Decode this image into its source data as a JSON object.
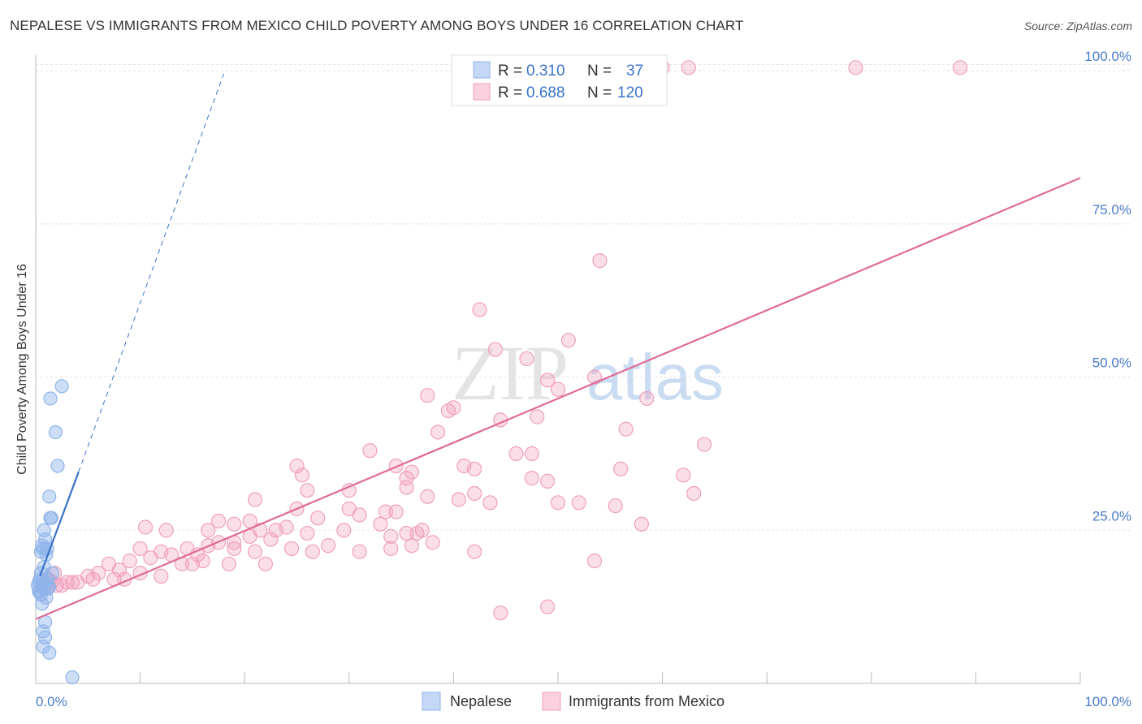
{
  "header": {
    "title": "NEPALESE VS IMMIGRANTS FROM MEXICO CHILD POVERTY AMONG BOYS UNDER 16 CORRELATION CHART",
    "source": "Source: ZipAtlas.com"
  },
  "watermark": {
    "zip": "ZIP",
    "atlas": "atlas"
  },
  "legend": {
    "r_label": "R =",
    "n_label": "N =",
    "rows": [
      {
        "r": "0.310",
        "n": "37"
      },
      {
        "r": "0.688",
        "n": "120"
      }
    ]
  },
  "bottom_legend": {
    "items": [
      "Nepalese",
      "Immigrants from Mexico"
    ]
  },
  "colors": {
    "nepalese": "#8fb4ea",
    "nepalese_line": "#3a72c8",
    "mexico": "#f0a0bd",
    "mexico_line": "#e06a96",
    "tick_text": "#4a7cc9"
  },
  "chart_data": {
    "type": "scatter",
    "title": "NEPALESE VS IMMIGRANTS FROM MEXICO CHILD POVERTY AMONG BOYS UNDER 16 CORRELATION CHART",
    "xlabel": "",
    "ylabel": "Child Poverty Among Boys Under 16",
    "xlim": [
      0,
      100
    ],
    "ylim": [
      0,
      102
    ],
    "x_tick_labels": [
      "0.0%",
      "100.0%"
    ],
    "y_tick_labels": [
      "25.0%",
      "50.0%",
      "75.0%",
      "100.0%"
    ],
    "y_ticks": [
      25,
      50,
      75,
      100
    ],
    "grid": true,
    "legend_position": "top-center",
    "series": [
      {
        "name": "Nepalese",
        "points": [
          [
            2.5,
            48.5
          ],
          [
            1.4,
            46.5
          ],
          [
            1.9,
            41
          ],
          [
            2.1,
            35.5
          ],
          [
            1.3,
            30.5
          ],
          [
            1.4,
            27
          ],
          [
            1.5,
            27
          ],
          [
            0.8,
            25
          ],
          [
            0.9,
            23.5
          ],
          [
            0.6,
            22.5
          ],
          [
            1.1,
            22
          ],
          [
            0.7,
            22
          ],
          [
            1.0,
            21
          ],
          [
            0.5,
            18
          ],
          [
            1.6,
            18
          ],
          [
            0.3,
            16.5
          ],
          [
            0.6,
            16
          ],
          [
            0.8,
            15.5
          ],
          [
            0.4,
            15
          ],
          [
            1.2,
            15.5
          ],
          [
            0.5,
            14.5
          ],
          [
            1.0,
            14
          ],
          [
            0.6,
            13
          ],
          [
            0.9,
            10
          ],
          [
            0.7,
            8.5
          ],
          [
            0.9,
            7.5
          ],
          [
            0.7,
            6
          ],
          [
            1.3,
            5
          ],
          [
            3.5,
            1
          ],
          [
            0.2,
            16
          ],
          [
            0.4,
            17
          ],
          [
            0.9,
            16.5
          ],
          [
            0.3,
            15
          ],
          [
            1.1,
            17
          ],
          [
            0.5,
            21.5
          ],
          [
            0.8,
            19
          ],
          [
            1.3,
            15.8
          ]
        ],
        "trend": {
          "x": [
            0.4,
            4.1
          ],
          "y": [
            17.5,
            34.5
          ]
        },
        "trend_extension": {
          "x": [
            4.1,
            18.0
          ],
          "y": [
            34.5,
            99.5
          ]
        }
      },
      {
        "name": "Immigrants from Mexico",
        "points": [
          [
            46.5,
            100.5
          ],
          [
            60,
            100.5
          ],
          [
            62.5,
            100.5
          ],
          [
            78.5,
            100.5
          ],
          [
            88.5,
            100.5
          ],
          [
            54,
            69
          ],
          [
            42.5,
            61
          ],
          [
            51,
            56
          ],
          [
            44,
            54.5
          ],
          [
            47,
            53
          ],
          [
            49,
            49.5
          ],
          [
            53.5,
            50
          ],
          [
            50,
            48
          ],
          [
            37.5,
            47
          ],
          [
            58.5,
            46.5
          ],
          [
            40,
            45
          ],
          [
            39.5,
            44.5
          ],
          [
            48,
            43.5
          ],
          [
            44.5,
            43
          ],
          [
            56.5,
            41.5
          ],
          [
            38.5,
            41
          ],
          [
            64,
            39
          ],
          [
            32,
            38
          ],
          [
            46,
            37.5
          ],
          [
            47.5,
            37.5
          ],
          [
            34.5,
            35.5
          ],
          [
            41,
            35.5
          ],
          [
            42,
            35
          ],
          [
            25,
            35.5
          ],
          [
            56,
            35
          ],
          [
            25.5,
            34
          ],
          [
            36,
            34.5
          ],
          [
            35.5,
            33.5
          ],
          [
            47.5,
            33.5
          ],
          [
            49,
            33
          ],
          [
            62,
            34
          ],
          [
            30,
            31.5
          ],
          [
            26,
            31.5
          ],
          [
            42,
            31
          ],
          [
            35.5,
            32
          ],
          [
            40.5,
            30
          ],
          [
            43.5,
            29.5
          ],
          [
            63,
            31
          ],
          [
            37.5,
            30.5
          ],
          [
            52,
            29.5
          ],
          [
            21,
            30
          ],
          [
            25,
            28.5
          ],
          [
            30,
            28.5
          ],
          [
            33.5,
            28
          ],
          [
            34.5,
            28
          ],
          [
            31,
            27.5
          ],
          [
            27,
            27
          ],
          [
            20.5,
            26.5
          ],
          [
            17.5,
            26.5
          ],
          [
            33,
            26
          ],
          [
            19,
            26
          ],
          [
            24,
            25.5
          ],
          [
            29.5,
            25
          ],
          [
            26,
            24.5
          ],
          [
            36.5,
            24.5
          ],
          [
            34,
            24
          ],
          [
            35.5,
            24.5
          ],
          [
            37,
            25
          ],
          [
            21.5,
            25
          ],
          [
            23,
            25
          ],
          [
            16.5,
            25
          ],
          [
            10.5,
            25.5
          ],
          [
            12.5,
            25
          ],
          [
            20.5,
            24
          ],
          [
            16.5,
            22.5
          ],
          [
            19,
            23
          ],
          [
            22.5,
            23.5
          ],
          [
            24.5,
            22
          ],
          [
            28,
            22.5
          ],
          [
            26.5,
            21.5
          ],
          [
            31,
            21.5
          ],
          [
            34,
            22
          ],
          [
            36,
            22.5
          ],
          [
            38,
            23
          ],
          [
            42,
            21.5
          ],
          [
            10,
            22
          ],
          [
            12,
            21.5
          ],
          [
            14.5,
            22
          ],
          [
            15.5,
            21
          ],
          [
            17.5,
            23
          ],
          [
            19,
            22
          ],
          [
            21,
            21.5
          ],
          [
            13,
            21
          ],
          [
            16,
            20
          ],
          [
            18.5,
            19.5
          ],
          [
            9,
            20
          ],
          [
            11,
            20.5
          ],
          [
            14,
            19.5
          ],
          [
            15,
            19.5
          ],
          [
            7,
            19.5
          ],
          [
            8,
            18.5
          ],
          [
            10,
            18
          ],
          [
            12,
            17.5
          ],
          [
            6,
            18
          ],
          [
            5,
            17.5
          ],
          [
            4,
            16.5
          ],
          [
            3,
            16.5
          ],
          [
            2,
            16
          ],
          [
            1,
            15.5
          ],
          [
            1.5,
            16.5
          ],
          [
            2.5,
            16
          ],
          [
            3.5,
            16.5
          ],
          [
            5.5,
            17
          ],
          [
            7.5,
            17
          ],
          [
            8.5,
            17
          ],
          [
            0.8,
            16
          ],
          [
            1.2,
            17
          ],
          [
            1.8,
            18
          ],
          [
            53.5,
            20
          ],
          [
            49,
            12.5
          ],
          [
            44.5,
            11.5
          ],
          [
            55.5,
            29
          ],
          [
            58,
            26
          ],
          [
            50,
            29.5
          ],
          [
            22,
            19.5
          ]
        ],
        "trend": {
          "x": [
            0,
            100
          ],
          "y": [
            10.5,
            82.5
          ]
        }
      }
    ]
  }
}
